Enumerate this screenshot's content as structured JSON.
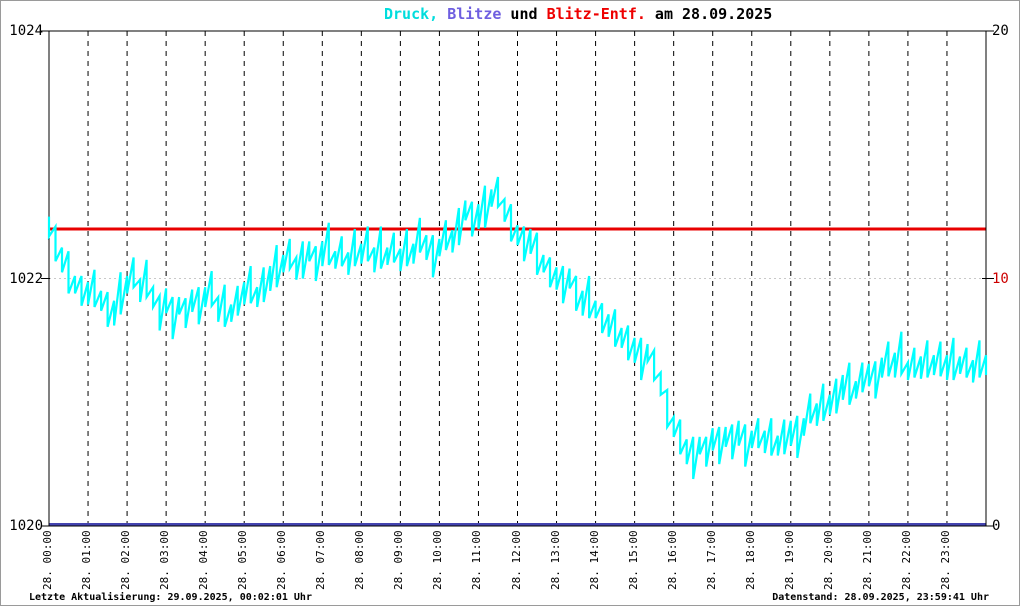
{
  "page": {
    "background": "#ffffff",
    "frame_color": "#9a9a9a"
  },
  "title": {
    "full": "Druck, Blitze und Blitz-Entf. am 28.09.2025",
    "parts": [
      {
        "text": "Druck,",
        "color": "#00dddd"
      },
      {
        "text": " Blitze",
        "color": "#6e5ee0"
      },
      {
        "text": " und ",
        "color": "#000000"
      },
      {
        "text": "Blitz-Entf.",
        "color": "#ee0000"
      },
      {
        "text": " am 28.09.2025",
        "color": "#000000"
      }
    ]
  },
  "footer": {
    "left": "Letzte Aktualisierung: 29.09.2025, 00:02:01 Uhr",
    "right": "Datenstand: 28.09.2025, 23:59:41 Uhr"
  },
  "chart_data": {
    "type": "line",
    "title": "Druck, Blitze und Blitz-Entf. am 28.09.2025",
    "x_axis": {
      "total_minutes": 1440,
      "hours": 24,
      "labels": [
        "28. 00:00",
        "28. 01:00",
        "28. 02:00",
        "28. 03:00",
        "28. 04:00",
        "28. 05:00",
        "28. 06:00",
        "28. 07:00",
        "28. 08:00",
        "28. 09:00",
        "28. 10:00",
        "28. 11:00",
        "28. 12:00",
        "28. 13:00",
        "28. 14:00",
        "28. 15:00",
        "28. 16:00",
        "28. 17:00",
        "28. 18:00",
        "28. 19:00",
        "28. 20:00",
        "28. 21:00",
        "28. 22:00",
        "28. 23:00"
      ],
      "gridlines": "dashed-vertical-each-hour",
      "gridline_color": "#000000"
    },
    "y_left": {
      "min": 1020,
      "max": 1024,
      "tick_values": [
        1024,
        1022,
        1020
      ],
      "tick_labels": [
        "1024",
        "1022",
        "1020"
      ],
      "dotted_gridline_at": 1022,
      "dotted_gridline_color": "#c8c8c8"
    },
    "y_right": {
      "min": 0,
      "max": 20,
      "tick_values": [
        20,
        10,
        0
      ],
      "tick_labels": [
        "20",
        "10",
        "0"
      ],
      "tick_label_colors": [
        "#000000",
        "#cc0000",
        "#000000"
      ]
    },
    "series": [
      {
        "name": "Druck",
        "axis": "left",
        "color": "#00ffff",
        "style": "noisy-line",
        "points_minutes_hpa": [
          [
            0,
            1022.42
          ],
          [
            10,
            1022.28
          ],
          [
            20,
            1022.15
          ],
          [
            30,
            1022.05
          ],
          [
            40,
            1021.95
          ],
          [
            50,
            1021.9
          ],
          [
            60,
            1021.88
          ],
          [
            70,
            1021.92
          ],
          [
            80,
            1021.82
          ],
          [
            90,
            1021.75
          ],
          [
            100,
            1021.72
          ],
          [
            110,
            1021.88
          ],
          [
            120,
            1021.95
          ],
          [
            130,
            1022.05
          ],
          [
            140,
            1021.9
          ],
          [
            150,
            1022.0
          ],
          [
            160,
            1021.85
          ],
          [
            170,
            1021.72
          ],
          [
            180,
            1021.82
          ],
          [
            190,
            1021.68
          ],
          [
            200,
            1021.78
          ],
          [
            210,
            1021.72
          ],
          [
            220,
            1021.82
          ],
          [
            230,
            1021.78
          ],
          [
            240,
            1021.85
          ],
          [
            250,
            1021.92
          ],
          [
            260,
            1021.75
          ],
          [
            270,
            1021.78
          ],
          [
            280,
            1021.72
          ],
          [
            290,
            1021.82
          ],
          [
            300,
            1021.88
          ],
          [
            310,
            1021.95
          ],
          [
            320,
            1021.85
          ],
          [
            330,
            1021.95
          ],
          [
            340,
            1022.0
          ],
          [
            350,
            1022.1
          ],
          [
            360,
            1022.12
          ],
          [
            370,
            1022.2
          ],
          [
            380,
            1022.08
          ],
          [
            390,
            1022.15
          ],
          [
            400,
            1022.22
          ],
          [
            410,
            1022.12
          ],
          [
            420,
            1022.2
          ],
          [
            430,
            1022.28
          ],
          [
            440,
            1022.15
          ],
          [
            450,
            1022.22
          ],
          [
            460,
            1022.12
          ],
          [
            470,
            1022.25
          ],
          [
            480,
            1022.2
          ],
          [
            490,
            1022.28
          ],
          [
            500,
            1022.15
          ],
          [
            510,
            1022.25
          ],
          [
            520,
            1022.18
          ],
          [
            530,
            1022.25
          ],
          [
            540,
            1022.15
          ],
          [
            550,
            1022.25
          ],
          [
            560,
            1022.2
          ],
          [
            570,
            1022.35
          ],
          [
            580,
            1022.25
          ],
          [
            590,
            1022.18
          ],
          [
            600,
            1022.25
          ],
          [
            610,
            1022.35
          ],
          [
            620,
            1022.3
          ],
          [
            630,
            1022.42
          ],
          [
            640,
            1022.55
          ],
          [
            650,
            1022.48
          ],
          [
            660,
            1022.5
          ],
          [
            670,
            1022.58
          ],
          [
            680,
            1022.65
          ],
          [
            690,
            1022.7
          ],
          [
            700,
            1022.55
          ],
          [
            710,
            1022.45
          ],
          [
            720,
            1022.35
          ],
          [
            730,
            1022.28
          ],
          [
            740,
            1022.3
          ],
          [
            750,
            1022.2
          ],
          [
            760,
            1022.12
          ],
          [
            770,
            1022.05
          ],
          [
            780,
            1022.0
          ],
          [
            790,
            1021.95
          ],
          [
            800,
            1022.0
          ],
          [
            810,
            1021.88
          ],
          [
            820,
            1021.8
          ],
          [
            830,
            1021.85
          ],
          [
            840,
            1021.75
          ],
          [
            850,
            1021.68
          ],
          [
            860,
            1021.62
          ],
          [
            870,
            1021.6
          ],
          [
            880,
            1021.52
          ],
          [
            890,
            1021.48
          ],
          [
            900,
            1021.42
          ],
          [
            910,
            1021.35
          ],
          [
            920,
            1021.4
          ],
          [
            930,
            1021.3
          ],
          [
            940,
            1021.15
          ],
          [
            950,
            1020.95
          ],
          [
            960,
            1020.8
          ],
          [
            970,
            1020.72
          ],
          [
            980,
            1020.6
          ],
          [
            990,
            1020.55
          ],
          [
            1000,
            1020.65
          ],
          [
            1010,
            1020.6
          ],
          [
            1020,
            1020.7
          ],
          [
            1030,
            1020.65
          ],
          [
            1040,
            1020.72
          ],
          [
            1050,
            1020.68
          ],
          [
            1060,
            1020.75
          ],
          [
            1070,
            1020.65
          ],
          [
            1080,
            1020.7
          ],
          [
            1090,
            1020.75
          ],
          [
            1100,
            1020.68
          ],
          [
            1110,
            1020.72
          ],
          [
            1120,
            1020.65
          ],
          [
            1130,
            1020.72
          ],
          [
            1140,
            1020.75
          ],
          [
            1150,
            1020.72
          ],
          [
            1160,
            1020.8
          ],
          [
            1170,
            1020.95
          ],
          [
            1180,
            1020.9
          ],
          [
            1190,
            1021.0
          ],
          [
            1200,
            1020.98
          ],
          [
            1210,
            1021.05
          ],
          [
            1220,
            1021.12
          ],
          [
            1230,
            1021.15
          ],
          [
            1240,
            1021.1
          ],
          [
            1250,
            1021.2
          ],
          [
            1260,
            1021.22
          ],
          [
            1270,
            1021.18
          ],
          [
            1280,
            1021.28
          ],
          [
            1290,
            1021.35
          ],
          [
            1300,
            1021.3
          ],
          [
            1310,
            1021.4
          ],
          [
            1320,
            1021.25
          ],
          [
            1330,
            1021.32
          ],
          [
            1340,
            1021.28
          ],
          [
            1350,
            1021.35
          ],
          [
            1360,
            1021.3
          ],
          [
            1370,
            1021.35
          ],
          [
            1380,
            1021.28
          ],
          [
            1390,
            1021.35
          ],
          [
            1400,
            1021.3
          ],
          [
            1410,
            1021.32
          ],
          [
            1420,
            1021.25
          ],
          [
            1430,
            1021.35
          ],
          [
            1440,
            1021.3
          ]
        ]
      },
      {
        "name": "Blitz-Entf.",
        "axis": "right",
        "color": "#e80000",
        "style": "horizontal-line",
        "constant_value": 12
      },
      {
        "name": "Blitze",
        "axis": "right",
        "color": "#4444b0",
        "style": "horizontal-line",
        "constant_value": 0
      }
    ],
    "render_hints": {
      "legend": "none",
      "noise_halfspan_pattern_hpa": [
        0.08,
        0.14,
        0.1,
        0.17,
        0.07,
        0.12,
        0.09,
        0.15
      ]
    }
  }
}
